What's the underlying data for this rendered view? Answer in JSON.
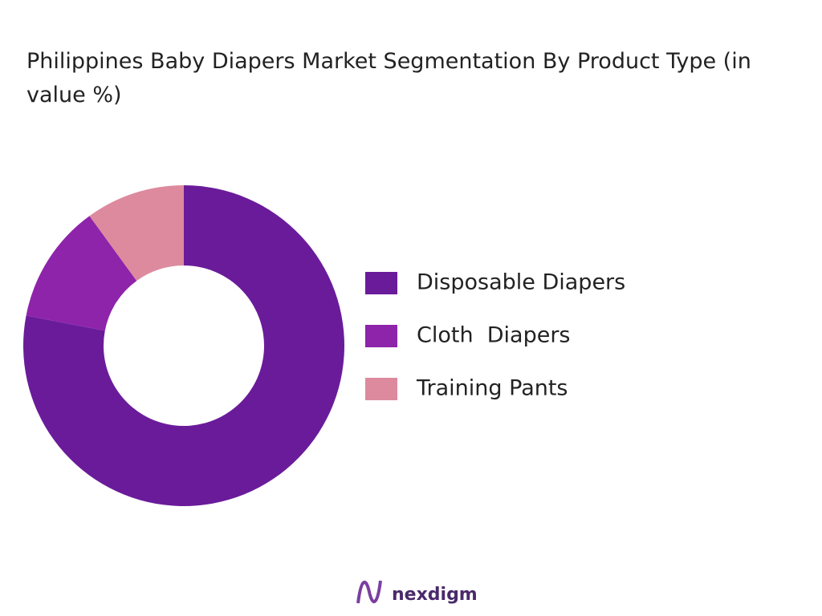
{
  "chart_data": {
    "type": "donut",
    "title": "Philippines Baby Diapers Market Segmentation By Product Type (in value %)",
    "categories": [
      "Disposable Diapers",
      "Cloth  Diapers",
      "Training Pants"
    ],
    "values": [
      78,
      12,
      10
    ],
    "colors": [
      "#6a1b9a",
      "#8e24aa",
      "#dd8a9e"
    ],
    "legend": "right"
  },
  "brand": "nexdigm"
}
